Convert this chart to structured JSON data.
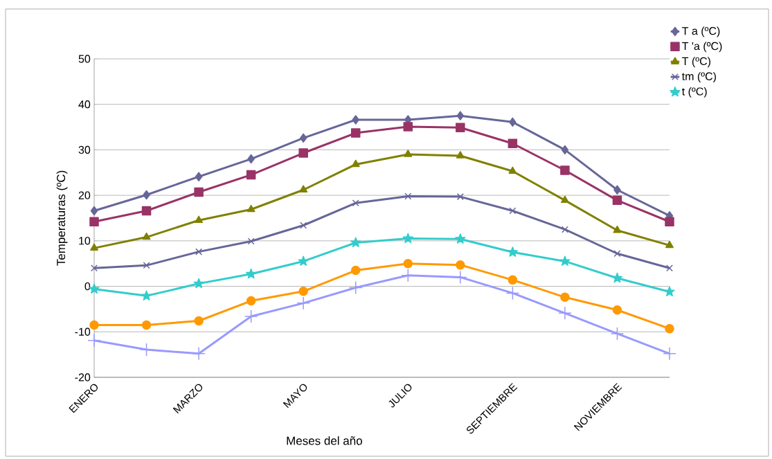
{
  "chart_data": {
    "type": "line",
    "xlabel": "Meses del año",
    "ylabel": "Temperaturas (ºC)",
    "categories": [
      "ENERO",
      null,
      "MARZO",
      null,
      "MAYO",
      null,
      "JULIO",
      null,
      "SEPTIEMBRE",
      null,
      "NOVIEMBRE",
      null
    ],
    "ylim": [
      -20,
      50
    ],
    "yticks": [
      -20,
      -10,
      0,
      10,
      20,
      30,
      40,
      50
    ],
    "grid": "y",
    "legend": "top right",
    "series": [
      {
        "name": "T a (ºC)",
        "color": "#666699",
        "marker": "diamond",
        "values": [
          16.6,
          20.1,
          24.1,
          28.0,
          32.6,
          36.6,
          36.6,
          37.5,
          36.1,
          30.0,
          21.2,
          15.5
        ]
      },
      {
        "name": "T 'a (ºC)",
        "color": "#993366",
        "marker": "square",
        "values": [
          14.2,
          16.6,
          20.7,
          24.5,
          29.3,
          33.7,
          35.1,
          34.9,
          31.4,
          25.5,
          18.9,
          14.2
        ]
      },
      {
        "name": "T (ºC)",
        "color": "#808000",
        "marker": "triangle",
        "values": [
          8.4,
          10.8,
          14.5,
          16.9,
          21.2,
          26.8,
          29.0,
          28.7,
          25.3,
          18.9,
          12.3,
          9.0
        ]
      },
      {
        "name": "tm (ºC)",
        "color": "#666699",
        "marker": "cross",
        "values": [
          4.0,
          4.6,
          7.6,
          9.9,
          13.4,
          18.3,
          19.8,
          19.7,
          16.6,
          12.5,
          7.2,
          4.0
        ]
      },
      {
        "name": "t (ºC)",
        "color": "#33cccc",
        "marker": "star",
        "values": [
          -0.6,
          -2.1,
          0.6,
          2.7,
          5.5,
          9.6,
          10.5,
          10.4,
          7.5,
          5.5,
          1.8,
          -1.2
        ]
      },
      {
        "color": "#ff9900",
        "marker": "circle",
        "values": [
          -8.5,
          -8.5,
          -7.6,
          -3.2,
          -1.1,
          3.5,
          5.0,
          4.7,
          1.4,
          -2.4,
          -5.2,
          -9.3
        ]
      },
      {
        "color": "#9999ff",
        "marker": "plus",
        "values": [
          -11.9,
          -13.9,
          -14.8,
          -6.6,
          -3.7,
          -0.3,
          2.4,
          2.0,
          -1.5,
          -5.9,
          -10.4,
          -14.8
        ]
      }
    ]
  }
}
